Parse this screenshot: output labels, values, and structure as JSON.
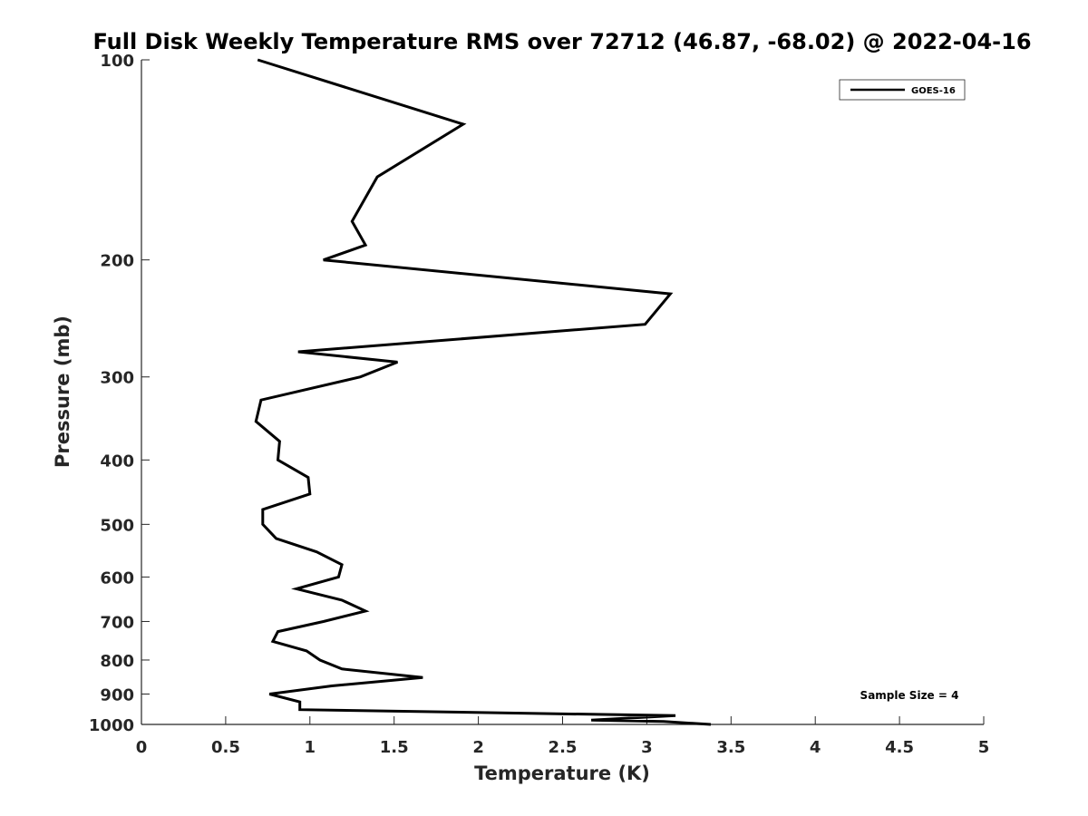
{
  "chart_data": {
    "type": "line",
    "title": "Full Disk Weekly Temperature RMS over 72712 (46.87, -68.02) @ 2022-04-16",
    "xlabel": "Temperature (K)",
    "ylabel": "Pressure (mb)",
    "xlim": [
      0,
      5
    ],
    "ylim": [
      100,
      1000
    ],
    "y_scale": "log",
    "y_reversed": true,
    "x_ticks": [
      0,
      0.5,
      1,
      1.5,
      2,
      2.5,
      3,
      3.5,
      4,
      4.5,
      5
    ],
    "x_tick_labels": [
      "0",
      "0.5",
      "1",
      "1.5",
      "2",
      "2.5",
      "3",
      "3.5",
      "4",
      "4.5",
      "5"
    ],
    "y_ticks": [
      100,
      200,
      300,
      400,
      500,
      600,
      700,
      800,
      900,
      1000
    ],
    "y_tick_labels": [
      "100",
      "200",
      "300",
      "400",
      "500",
      "600",
      "700",
      "800",
      "900",
      "1000"
    ],
    "grid": false,
    "legend_position": "top-right",
    "annotation": "Sample Size = 4",
    "series": [
      {
        "name": "GOES-16",
        "color": "#000000",
        "x": [
          0.69,
          1.91,
          1.4,
          1.25,
          1.33,
          1.08,
          3.14,
          2.99,
          0.93,
          1.52,
          1.3,
          0.71,
          0.68,
          0.82,
          0.81,
          0.99,
          1.0,
          0.72,
          0.72,
          0.8,
          1.04,
          1.19,
          1.17,
          0.92,
          1.19,
          1.33,
          1.08,
          0.81,
          0.78,
          0.98,
          1.06,
          1.19,
          1.67,
          1.13,
          0.76,
          0.94,
          0.94,
          3.17,
          2.67,
          3.1,
          3.38
        ],
        "y": [
          100,
          125,
          150,
          175,
          190,
          200,
          225,
          250,
          275,
          285,
          300,
          325,
          350,
          375,
          400,
          425,
          450,
          475,
          500,
          525,
          550,
          575,
          600,
          625,
          650,
          675,
          700,
          725,
          750,
          775,
          800,
          825,
          850,
          875,
          900,
          925,
          950,
          970,
          985,
          990,
          1000
        ]
      }
    ]
  }
}
